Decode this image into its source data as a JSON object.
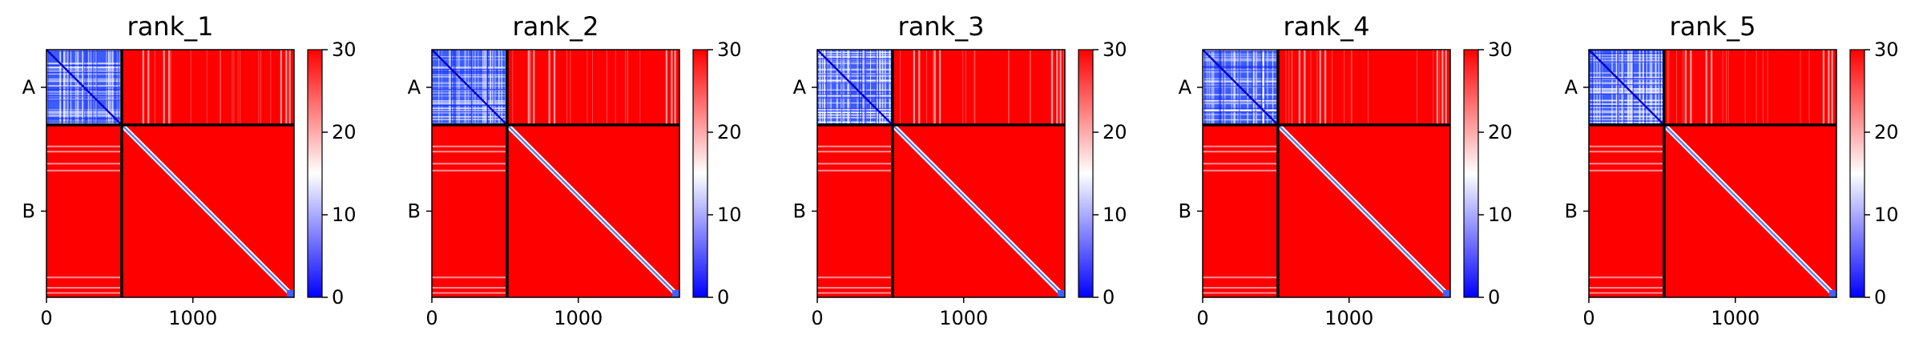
{
  "colors": {
    "low": "#0000ff",
    "mid": "#ffffff",
    "high": "#ff0000",
    "divider": "#000000"
  },
  "chart_data": [
    {
      "type": "heatmap",
      "title": "rank_1",
      "xticks": [
        "0",
        "1000"
      ],
      "xtick_values": [
        0,
        1000
      ],
      "yticks": [
        "A",
        "B"
      ],
      "chain_lengths": {
        "A": 514,
        "B": 1177
      },
      "total_length": 1691,
      "colorbar": {
        "ticks": [
          "0",
          "10",
          "20",
          "30"
        ],
        "range": [
          0,
          30
        ],
        "cmap": "bwr"
      },
      "blocks": {
        "A-A": "mostly low (blue)",
        "A-B": "high (red)",
        "B-A": "high (red)",
        "B-B": "high with low diagonal"
      }
    },
    {
      "type": "heatmap",
      "title": "rank_2",
      "xticks": [
        "0",
        "1000"
      ],
      "xtick_values": [
        0,
        1000
      ],
      "yticks": [
        "A",
        "B"
      ],
      "chain_lengths": {
        "A": 514,
        "B": 1177
      },
      "total_length": 1691,
      "colorbar": {
        "ticks": [
          "0",
          "10",
          "20",
          "30"
        ],
        "range": [
          0,
          30
        ],
        "cmap": "bwr"
      },
      "blocks": {
        "A-A": "mostly low (blue)",
        "A-B": "high (red)",
        "B-A": "high (red)",
        "B-B": "high with low diagonal"
      }
    },
    {
      "type": "heatmap",
      "title": "rank_3",
      "xticks": [
        "0",
        "1000"
      ],
      "xtick_values": [
        0,
        1000
      ],
      "yticks": [
        "A",
        "B"
      ],
      "chain_lengths": {
        "A": 514,
        "B": 1177
      },
      "total_length": 1691,
      "colorbar": {
        "ticks": [
          "0",
          "10",
          "20",
          "30"
        ],
        "range": [
          0,
          30
        ],
        "cmap": "bwr"
      },
      "blocks": {
        "A-A": "mostly low (blue)",
        "A-B": "high (red)",
        "B-A": "high (red)",
        "B-B": "high with low diagonal"
      }
    },
    {
      "type": "heatmap",
      "title": "rank_4",
      "xticks": [
        "0",
        "1000"
      ],
      "xtick_values": [
        0,
        1000
      ],
      "yticks": [
        "A",
        "B"
      ],
      "chain_lengths": {
        "A": 514,
        "B": 1177
      },
      "total_length": 1691,
      "colorbar": {
        "ticks": [
          "0",
          "10",
          "20",
          "30"
        ],
        "range": [
          0,
          30
        ],
        "cmap": "bwr"
      },
      "blocks": {
        "A-A": "mostly low (blue)",
        "A-B": "high (red)",
        "B-A": "high (red)",
        "B-B": "high with low diagonal"
      }
    },
    {
      "type": "heatmap",
      "title": "rank_5",
      "xticks": [
        "0",
        "1000"
      ],
      "xtick_values": [
        0,
        1000
      ],
      "yticks": [
        "A",
        "B"
      ],
      "chain_lengths": {
        "A": 514,
        "B": 1177
      },
      "total_length": 1691,
      "colorbar": {
        "ticks": [
          "0",
          "10",
          "20",
          "30"
        ],
        "range": [
          0,
          30
        ],
        "cmap": "bwr"
      },
      "blocks": {
        "A-A": "mostly low (blue)",
        "A-B": "high (red)",
        "B-A": "high (red)",
        "B-B": "high with low diagonal"
      }
    }
  ]
}
